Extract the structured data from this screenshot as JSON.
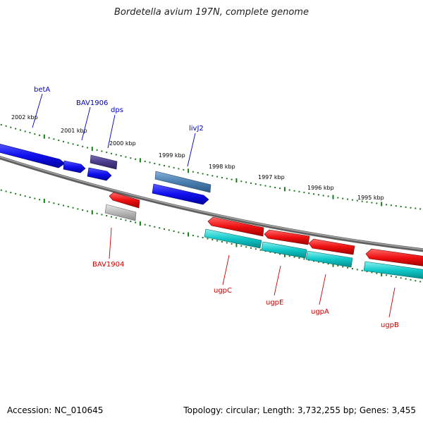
{
  "title": "Bordetella avium 197N, complete genome",
  "footer": {
    "accession": "Accession: NC_010645",
    "summary": "Topology: circular; Length: 3,732,255 bp; Genes: 3,455"
  },
  "colors": {
    "backbone": "#808080",
    "tick": "#1a7a1a",
    "forward_gene": "#1010ee",
    "forward_gene_alt": "#4a7fb0",
    "forward_gene_dark": "#4b3a8a",
    "reverse_gene": "#ee1010",
    "reverse_gene_alt": "#b0b0b0",
    "reverse_cds": "#10c8c8",
    "forward_label": "#0000bb",
    "reverse_label": "#cc0000"
  },
  "scale_labels": [
    "2002 kbp",
    "2001 kbp",
    "2000 kbp",
    "1999 kbp",
    "1998 kbp",
    "1997 kbp",
    "1996 kbp",
    "1995 kbp"
  ],
  "genes_forward": [
    {
      "label": "betA",
      "has_label": true
    },
    {
      "label": "BAV1906",
      "has_label": true
    },
    {
      "label": "dps",
      "has_label": true
    },
    {
      "label": "livJ2",
      "has_label": true
    }
  ],
  "genes_reverse": [
    {
      "label": "BAV1904"
    },
    {
      "label": "ugpC"
    },
    {
      "label": "ugpE"
    },
    {
      "label": "ugpA"
    },
    {
      "label": "ugpB"
    }
  ]
}
